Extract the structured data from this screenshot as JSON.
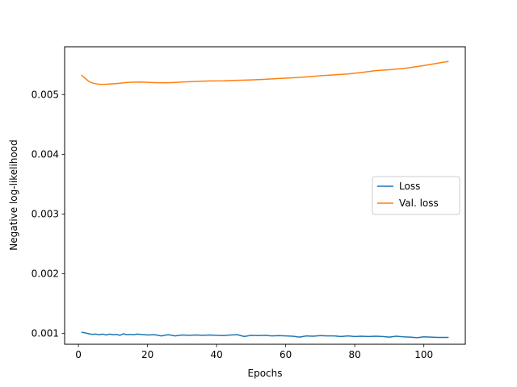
{
  "chart_data": {
    "type": "line",
    "xlabel": "Epochs",
    "ylabel": "Negative log-likelihood",
    "xlim": [
      -4,
      112
    ],
    "ylim": [
      0.00082,
      0.0058
    ],
    "xticks": [
      0,
      20,
      40,
      60,
      80,
      100
    ],
    "xtick_labels": [
      "0",
      "20",
      "40",
      "60",
      "80",
      "100"
    ],
    "yticks": [
      0.001,
      0.002,
      0.003,
      0.004,
      0.005
    ],
    "ytick_labels": [
      "0.001",
      "0.002",
      "0.003",
      "0.004",
      "0.005"
    ],
    "legend_position": "center-right",
    "grid": false,
    "series": [
      {
        "name": "Loss",
        "color": "#1f77b4",
        "points": [
          [
            1,
            0.00102
          ],
          [
            2,
            0.00101
          ],
          [
            3,
            0.000995
          ],
          [
            4,
            0.000985
          ],
          [
            5,
            0.00099
          ],
          [
            6,
            0.00098
          ],
          [
            7,
            0.00099
          ],
          [
            8,
            0.000975
          ],
          [
            9,
            0.00099
          ],
          [
            10,
            0.00098
          ],
          [
            11,
            0.000985
          ],
          [
            12,
            0.00097
          ],
          [
            13,
            0.000995
          ],
          [
            14,
            0.00098
          ],
          [
            15,
            0.000985
          ],
          [
            16,
            0.00098
          ],
          [
            17,
            0.00099
          ],
          [
            18,
            0.000985
          ],
          [
            19,
            0.00098
          ],
          [
            20,
            0.000975
          ],
          [
            22,
            0.00098
          ],
          [
            24,
            0.00096
          ],
          [
            26,
            0.00098
          ],
          [
            28,
            0.00096
          ],
          [
            30,
            0.000975
          ],
          [
            32,
            0.00097
          ],
          [
            34,
            0.000975
          ],
          [
            36,
            0.00097
          ],
          [
            38,
            0.000975
          ],
          [
            40,
            0.00097
          ],
          [
            42,
            0.000965
          ],
          [
            44,
            0.000975
          ],
          [
            46,
            0.00098
          ],
          [
            48,
            0.00095
          ],
          [
            50,
            0.00097
          ],
          [
            52,
            0.000965
          ],
          [
            54,
            0.00097
          ],
          [
            56,
            0.00096
          ],
          [
            58,
            0.000965
          ],
          [
            60,
            0.00096
          ],
          [
            62,
            0.000955
          ],
          [
            64,
            0.00094
          ],
          [
            66,
            0.00096
          ],
          [
            68,
            0.000955
          ],
          [
            70,
            0.000965
          ],
          [
            72,
            0.00096
          ],
          [
            74,
            0.00096
          ],
          [
            76,
            0.00095
          ],
          [
            78,
            0.00096
          ],
          [
            80,
            0.00095
          ],
          [
            82,
            0.000955
          ],
          [
            84,
            0.00095
          ],
          [
            86,
            0.000955
          ],
          [
            88,
            0.00095
          ],
          [
            90,
            0.00094
          ],
          [
            92,
            0.000955
          ],
          [
            94,
            0.000945
          ],
          [
            96,
            0.00094
          ],
          [
            98,
            0.00093
          ],
          [
            100,
            0.000945
          ],
          [
            102,
            0.00094
          ],
          [
            104,
            0.000935
          ],
          [
            107,
            0.000935
          ]
        ]
      },
      {
        "name": "Val. loss",
        "color": "#ff7f0e",
        "points": [
          [
            1,
            0.00532
          ],
          [
            2,
            0.00527
          ],
          [
            3,
            0.00522
          ],
          [
            4,
            0.005195
          ],
          [
            5,
            0.00518
          ],
          [
            6,
            0.005172
          ],
          [
            7,
            0.00517
          ],
          [
            8,
            0.005172
          ],
          [
            10,
            0.00518
          ],
          [
            12,
            0.00519
          ],
          [
            14,
            0.005202
          ],
          [
            16,
            0.005208
          ],
          [
            18,
            0.00521
          ],
          [
            20,
            0.005205
          ],
          [
            22,
            0.0052
          ],
          [
            24,
            0.005197
          ],
          [
            26,
            0.005198
          ],
          [
            28,
            0.005203
          ],
          [
            30,
            0.00521
          ],
          [
            34,
            0.00522
          ],
          [
            38,
            0.005228
          ],
          [
            42,
            0.00523
          ],
          [
            46,
            0.005238
          ],
          [
            50,
            0.005245
          ],
          [
            54,
            0.005255
          ],
          [
            58,
            0.005268
          ],
          [
            62,
            0.00528
          ],
          [
            66,
            0.005295
          ],
          [
            70,
            0.005315
          ],
          [
            74,
            0.00533
          ],
          [
            78,
            0.005345
          ],
          [
            82,
            0.00537
          ],
          [
            86,
            0.0054
          ],
          [
            90,
            0.005415
          ],
          [
            94,
            0.005435
          ],
          [
            98,
            0.005468
          ],
          [
            102,
            0.005505
          ],
          [
            105,
            0.005535
          ],
          [
            107,
            0.005553
          ]
        ]
      }
    ]
  }
}
